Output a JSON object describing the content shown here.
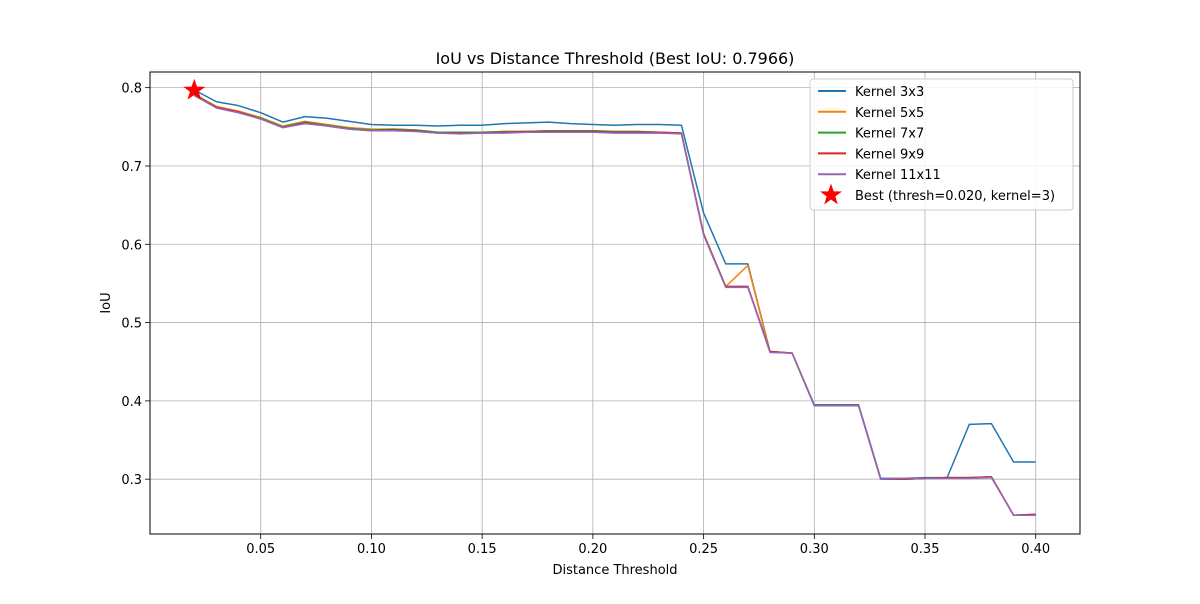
{
  "chart_data": {
    "type": "line",
    "title": "IoU vs Distance Threshold (Best IoU: 0.7966)",
    "xlabel": "Distance Threshold",
    "ylabel": "IoU",
    "xlim": [
      0.0,
      0.42
    ],
    "ylim": [
      0.23,
      0.82
    ],
    "grid": true,
    "legend_position": "top-right",
    "x_ticks": [
      0.05,
      0.1,
      0.15,
      0.2,
      0.25,
      0.3,
      0.35,
      0.4
    ],
    "x_tick_labels": [
      "0.05",
      "0.10",
      "0.15",
      "0.20",
      "0.25",
      "0.30",
      "0.35",
      "0.40"
    ],
    "y_ticks": [
      0.3,
      0.4,
      0.5,
      0.6,
      0.7,
      0.8
    ],
    "y_tick_labels": [
      "0.3",
      "0.4",
      "0.5",
      "0.6",
      "0.7",
      "0.8"
    ],
    "x": [
      0.02,
      0.03,
      0.04,
      0.05,
      0.06,
      0.07,
      0.08,
      0.09,
      0.1,
      0.11,
      0.12,
      0.13,
      0.14,
      0.15,
      0.16,
      0.17,
      0.18,
      0.19,
      0.2,
      0.21,
      0.22,
      0.23,
      0.24,
      0.25,
      0.26,
      0.27,
      0.28,
      0.29,
      0.3,
      0.31,
      0.32,
      0.33,
      0.34,
      0.35,
      0.36,
      0.37,
      0.38,
      0.39,
      0.4
    ],
    "series": [
      {
        "name": "Kernel 3x3",
        "color": "#1f77b4",
        "values": [
          0.797,
          0.782,
          0.777,
          0.768,
          0.756,
          0.763,
          0.761,
          0.757,
          0.753,
          0.752,
          0.752,
          0.751,
          0.752,
          0.752,
          0.754,
          0.755,
          0.756,
          0.754,
          0.753,
          0.752,
          0.753,
          0.753,
          0.752,
          0.64,
          0.575,
          0.575,
          0.463,
          0.461,
          0.395,
          0.395,
          0.395,
          0.301,
          0.301,
          0.302,
          0.302,
          0.37,
          0.371,
          0.322,
          0.322
        ]
      },
      {
        "name": "Kernel 5x5",
        "color": "#ff7f0e",
        "values": [
          0.792,
          0.776,
          0.77,
          0.762,
          0.751,
          0.757,
          0.753,
          0.749,
          0.747,
          0.747,
          0.746,
          0.743,
          0.743,
          0.743,
          0.744,
          0.744,
          0.745,
          0.745,
          0.745,
          0.744,
          0.744,
          0.743,
          0.742,
          0.614,
          0.546,
          0.573,
          0.462,
          0.461,
          0.394,
          0.394,
          0.394,
          0.3,
          0.3,
          0.301,
          0.302,
          0.302,
          0.303,
          0.254,
          0.255
        ]
      },
      {
        "name": "Kernel 7x7",
        "color": "#2ca02c",
        "values": [
          0.791,
          0.775,
          0.769,
          0.761,
          0.75,
          0.756,
          0.752,
          0.748,
          0.746,
          0.747,
          0.746,
          0.743,
          0.743,
          0.743,
          0.744,
          0.744,
          0.745,
          0.745,
          0.745,
          0.744,
          0.744,
          0.743,
          0.742,
          0.613,
          0.546,
          0.546,
          0.463,
          0.461,
          0.394,
          0.394,
          0.394,
          0.3,
          0.3,
          0.301,
          0.302,
          0.302,
          0.303,
          0.254,
          0.255
        ]
      },
      {
        "name": "Kernel 9x9",
        "color": "#d62728",
        "values": [
          0.79,
          0.775,
          0.769,
          0.76,
          0.749,
          0.755,
          0.751,
          0.747,
          0.745,
          0.746,
          0.745,
          0.742,
          0.742,
          0.742,
          0.743,
          0.744,
          0.744,
          0.744,
          0.744,
          0.743,
          0.743,
          0.743,
          0.742,
          0.613,
          0.546,
          0.546,
          0.463,
          0.461,
          0.394,
          0.394,
          0.394,
          0.3,
          0.3,
          0.301,
          0.302,
          0.302,
          0.303,
          0.254,
          0.255
        ]
      },
      {
        "name": "Kernel 11x11",
        "color": "#9467bd",
        "values": [
          0.79,
          0.774,
          0.768,
          0.76,
          0.749,
          0.754,
          0.751,
          0.747,
          0.745,
          0.745,
          0.744,
          0.742,
          0.741,
          0.742,
          0.742,
          0.743,
          0.743,
          0.743,
          0.743,
          0.742,
          0.742,
          0.742,
          0.741,
          0.612,
          0.545,
          0.545,
          0.462,
          0.461,
          0.394,
          0.394,
          0.394,
          0.3,
          0.301,
          0.301,
          0.301,
          0.301,
          0.302,
          0.254,
          0.254
        ]
      }
    ],
    "best_point": {
      "label": "Best (thresh=0.020, kernel=3)",
      "x": 0.02,
      "y": 0.7966,
      "color": "#ff0000",
      "icon": "star-marker-icon"
    }
  }
}
